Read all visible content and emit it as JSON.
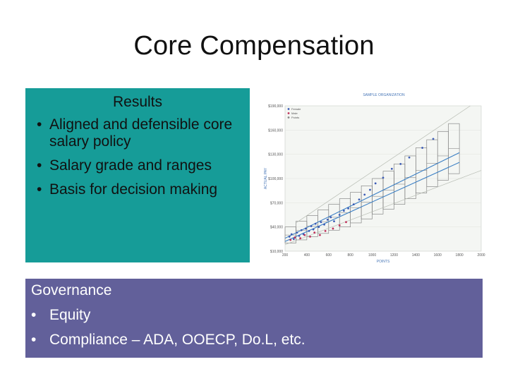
{
  "title": "Core Compensation",
  "results": {
    "heading": "Results",
    "items": [
      "Aligned and defensible core salary policy",
      "Salary grade and ranges",
      "Basis for decision making"
    ]
  },
  "governance": {
    "heading": "Governance",
    "items": [
      "Equity",
      "Compliance – ADA, OOECP, Do.L, etc."
    ]
  },
  "bullet_glyph": "•",
  "colors": {
    "results_bg": "#169c98",
    "governance_bg": "#62609a",
    "line": "#3b7fc4",
    "female_dot": "#3b5bb5",
    "male_dot": "#c0305a"
  },
  "chart_data": {
    "type": "scatter",
    "title": "SAMPLE ORGANIZATION",
    "xlabel": "POINTS",
    "ylabel": "ACTUAL PAY",
    "x_ticks": [
      "200",
      "400",
      "600",
      "800",
      "1000",
      "1200",
      "1400",
      "1600",
      "1800",
      "2000"
    ],
    "y_ticks": [
      "$10,000",
      "$40,000",
      "$70,000",
      "$100,000",
      "$130,000",
      "$160,000",
      "$190,000"
    ],
    "xlim": [
      200,
      2000
    ],
    "ylim": [
      10000,
      190000
    ],
    "legend": [
      "Female",
      "Male",
      "Points"
    ],
    "legend_position": "top-left",
    "grades": [
      {
        "x0": 200,
        "x1": 300,
        "min": 20000,
        "max": 40000
      },
      {
        "x0": 300,
        "x1": 400,
        "min": 24000,
        "max": 47000
      },
      {
        "x0": 400,
        "x1": 500,
        "min": 28000,
        "max": 54000
      },
      {
        "x0": 500,
        "x1": 600,
        "min": 32000,
        "max": 61000
      },
      {
        "x0": 600,
        "x1": 700,
        "min": 36000,
        "max": 68000
      },
      {
        "x0": 700,
        "x1": 800,
        "min": 40000,
        "max": 75000
      },
      {
        "x0": 800,
        "x1": 900,
        "min": 45000,
        "max": 83000
      },
      {
        "x0": 900,
        "x1": 1000,
        "min": 50000,
        "max": 91000
      },
      {
        "x0": 1000,
        "x1": 1100,
        "min": 56000,
        "max": 100000
      },
      {
        "x0": 1100,
        "x1": 1200,
        "min": 62000,
        "max": 109000
      },
      {
        "x0": 1200,
        "x1": 1300,
        "min": 68000,
        "max": 118000
      },
      {
        "x0": 1300,
        "x1": 1400,
        "min": 75000,
        "max": 128000
      },
      {
        "x0": 1400,
        "x1": 1500,
        "min": 82000,
        "max": 138000
      },
      {
        "x0": 1500,
        "x1": 1600,
        "min": 90000,
        "max": 148000
      },
      {
        "x0": 1600,
        "x1": 1700,
        "min": 98000,
        "max": 158000
      },
      {
        "x0": 1700,
        "x1": 1800,
        "min": 106000,
        "max": 168000
      }
    ],
    "trend_lines": [
      {
        "name": "",
        "points": [
          [
            200,
            22000
          ],
          [
            1800,
            120000
          ]
        ]
      },
      {
        "name": "",
        "points": [
          [
            200,
            26000
          ],
          [
            1800,
            132000
          ]
        ]
      },
      {
        "name": "",
        "points": [
          [
            200,
            18000
          ],
          [
            2000,
            110000
          ]
        ]
      },
      {
        "name": "",
        "points": [
          [
            300,
            45000
          ],
          [
            1900,
            190000
          ]
        ]
      }
    ],
    "series": [
      {
        "name": "Female",
        "points": [
          [
            240,
            28000
          ],
          [
            260,
            31000
          ],
          [
            280,
            25000
          ],
          [
            310,
            33000
          ],
          [
            330,
            29000
          ],
          [
            350,
            36000
          ],
          [
            370,
            31000
          ],
          [
            390,
            38000
          ],
          [
            420,
            35000
          ],
          [
            440,
            41000
          ],
          [
            460,
            37000
          ],
          [
            480,
            44000
          ],
          [
            510,
            40000
          ],
          [
            530,
            46000
          ],
          [
            560,
            43000
          ],
          [
            590,
            49000
          ],
          [
            620,
            52000
          ],
          [
            650,
            47000
          ],
          [
            700,
            55000
          ],
          [
            740,
            60000
          ],
          [
            780,
            63000
          ],
          [
            830,
            68000
          ],
          [
            880,
            74000
          ],
          [
            930,
            80000
          ],
          [
            980,
            86000
          ],
          [
            1030,
            94000
          ],
          [
            1100,
            101000
          ],
          [
            1180,
            112000
          ],
          [
            1260,
            118000
          ],
          [
            1340,
            126000
          ],
          [
            1460,
            138000
          ],
          [
            1560,
            149000
          ]
        ]
      },
      {
        "name": "Male",
        "points": [
          [
            250,
            24000
          ],
          [
            290,
            27000
          ],
          [
            340,
            26000
          ],
          [
            380,
            30000
          ],
          [
            430,
            28000
          ],
          [
            470,
            33000
          ],
          [
            520,
            30000
          ],
          [
            570,
            35000
          ],
          [
            640,
            38000
          ],
          [
            700,
            42000
          ],
          [
            760,
            46000
          ]
        ]
      }
    ]
  }
}
